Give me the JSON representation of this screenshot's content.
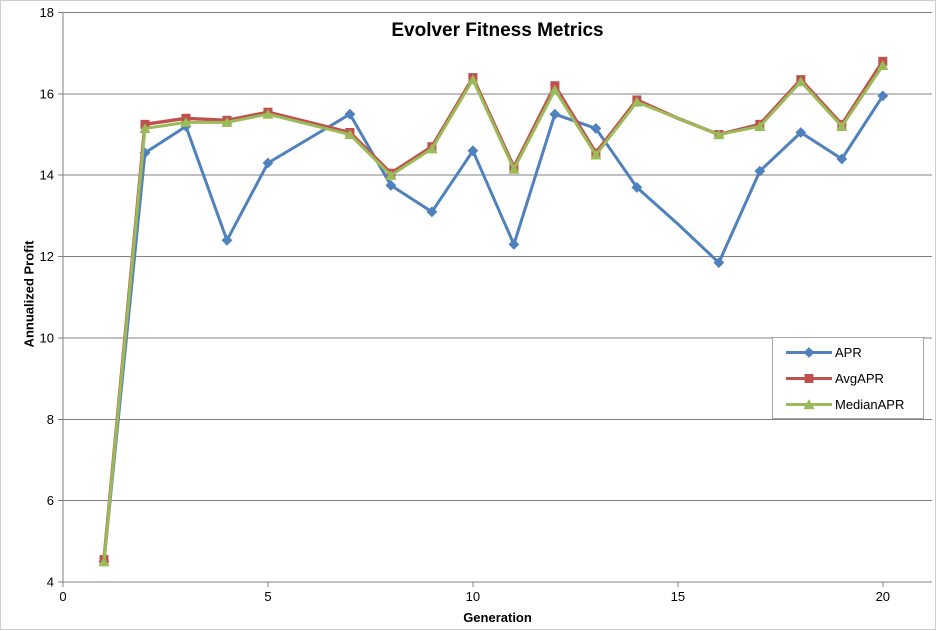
{
  "chart_data": {
    "type": "line",
    "title": "Evolver Fitness Metrics",
    "xlabel": "Generation",
    "ylabel": "Annualized Profit",
    "xlim": [
      0,
      21.2
    ],
    "ylim": [
      4,
      18
    ],
    "x_ticks": [
      0,
      5,
      10,
      15,
      20
    ],
    "y_ticks": [
      4,
      6,
      8,
      10,
      12,
      14,
      16,
      18
    ],
    "grid": "horizontal",
    "grid_color": "#808080",
    "axis_color": "#808080",
    "legend_position": "middle-right",
    "x": [
      1,
      2,
      3,
      4,
      5,
      6,
      7,
      8,
      9,
      10,
      11,
      12,
      13,
      14,
      15,
      16,
      17,
      18,
      19,
      20
    ],
    "marker_gap_x": [
      6,
      15
    ],
    "series": [
      {
        "name": "APR",
        "color": "#4F81BD",
        "marker": "diamond",
        "values": [
          4.5,
          14.55,
          15.2,
          12.4,
          14.3,
          14.9,
          15.5,
          13.75,
          13.1,
          14.6,
          12.3,
          15.5,
          15.15,
          13.7,
          12.8,
          11.85,
          14.1,
          15.05,
          14.4,
          15.95
        ]
      },
      {
        "name": "AvgAPR",
        "color": "#C0504D",
        "marker": "square",
        "values": [
          4.55,
          15.25,
          15.4,
          15.35,
          15.55,
          15.3,
          15.05,
          14.05,
          14.7,
          16.4,
          14.2,
          16.2,
          14.55,
          15.85,
          15.4,
          15.0,
          15.25,
          16.35,
          15.25,
          16.8
        ]
      },
      {
        "name": "MedianAPR",
        "color": "#9BBB59",
        "marker": "triangle",
        "values": [
          4.5,
          15.15,
          15.3,
          15.3,
          15.5,
          15.25,
          15.0,
          14.0,
          14.65,
          16.35,
          14.15,
          16.1,
          14.5,
          15.8,
          15.4,
          15.0,
          15.2,
          16.3,
          15.2,
          16.7
        ]
      }
    ]
  }
}
